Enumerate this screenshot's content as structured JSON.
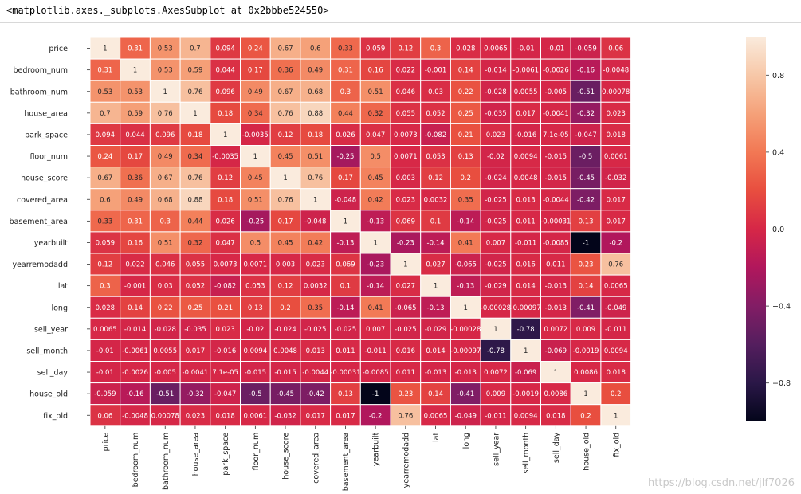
{
  "output": {
    "repr": "<matplotlib.axes._subplots.AxesSubplot at 0x2bbbe524550>"
  },
  "watermark": "https://blog.csdn.net/jlf7026",
  "chart_data": {
    "type": "heatmap",
    "title": "",
    "xlabel": "",
    "ylabel": "",
    "labels": [
      "price",
      "bedroom_num",
      "bathroom_num",
      "house_area",
      "park_space",
      "floor_num",
      "house_score",
      "covered_area",
      "basement_area",
      "yearbuilt",
      "yearremodadd",
      "lat",
      "long",
      "sell_year",
      "sell_month",
      "sell_day",
      "house_old",
      "fix_old"
    ],
    "annotations": [
      [
        "1",
        "0.31",
        "0.53",
        "0.7",
        "0.094",
        "0.24",
        "0.67",
        "0.6",
        "0.33",
        "0.059",
        "0.12",
        "0.3",
        "0.028",
        "0.0065",
        "-0.01",
        "-0.01",
        "-0.059",
        "0.06"
      ],
      [
        "0.31",
        "1",
        "0.53",
        "0.59",
        "0.044",
        "0.17",
        "0.36",
        "0.49",
        "0.31",
        "0.16",
        "0.022",
        "-0.001",
        "0.14",
        "-0.014",
        "-0.0061",
        "-0.0026",
        "-0.16",
        "-0.0048"
      ],
      [
        "0.53",
        "0.53",
        "1",
        "0.76",
        "0.096",
        "0.49",
        "0.67",
        "0.68",
        "0.3",
        "0.51",
        "0.046",
        "0.03",
        "0.22",
        "-0.028",
        "0.0055",
        "-0.005",
        "-0.51",
        "0.00078"
      ],
      [
        "0.7",
        "0.59",
        "0.76",
        "1",
        "0.18",
        "0.34",
        "0.76",
        "0.88",
        "0.44",
        "0.32",
        "0.055",
        "0.052",
        "0.25",
        "-0.035",
        "0.017",
        "-0.0041",
        "-0.32",
        "0.023"
      ],
      [
        "0.094",
        "0.044",
        "0.096",
        "0.18",
        "1",
        "-0.0035",
        "0.12",
        "0.18",
        "0.026",
        "0.047",
        "0.0073",
        "-0.082",
        "0.21",
        "0.023",
        "-0.016",
        "7.1e-05",
        "-0.047",
        "0.018"
      ],
      [
        "0.24",
        "0.17",
        "0.49",
        "0.34",
        "-0.0035",
        "1",
        "0.45",
        "0.51",
        "-0.25",
        "0.5",
        "0.0071",
        "0.053",
        "0.13",
        "-0.02",
        "0.0094",
        "-0.015",
        "-0.5",
        "0.0061"
      ],
      [
        "0.67",
        "0.36",
        "0.67",
        "0.76",
        "0.12",
        "0.45",
        "1",
        "0.76",
        "0.17",
        "0.45",
        "0.003",
        "0.12",
        "0.2",
        "-0.024",
        "0.0048",
        "-0.015",
        "-0.45",
        "-0.032"
      ],
      [
        "0.6",
        "0.49",
        "0.68",
        "0.88",
        "0.18",
        "0.51",
        "0.76",
        "1",
        "-0.048",
        "0.42",
        "0.023",
        "0.0032",
        "0.35",
        "-0.025",
        "0.013",
        "-0.0044",
        "-0.42",
        "0.017"
      ],
      [
        "0.33",
        "0.31",
        "0.3",
        "0.44",
        "0.026",
        "-0.25",
        "0.17",
        "-0.048",
        "1",
        "-0.13",
        "0.069",
        "0.1",
        "-0.14",
        "-0.025",
        "0.011",
        "-0.00031",
        "0.13",
        "0.017"
      ],
      [
        "0.059",
        "0.16",
        "0.51",
        "0.32",
        "0.047",
        "0.5",
        "0.45",
        "0.42",
        "-0.13",
        "1",
        "-0.23",
        "-0.14",
        "0.41",
        "0.007",
        "-0.011",
        "-0.0085",
        "-1",
        "-0.2"
      ],
      [
        "0.12",
        "0.022",
        "0.046",
        "0.055",
        "0.0073",
        "0.0071",
        "0.003",
        "0.023",
        "0.069",
        "-0.23",
        "1",
        "0.027",
        "-0.065",
        "-0.025",
        "0.016",
        "0.011",
        "0.23",
        "0.76"
      ],
      [
        "0.3",
        "-0.001",
        "0.03",
        "0.052",
        "-0.082",
        "0.053",
        "0.12",
        "0.0032",
        "0.1",
        "-0.14",
        "0.027",
        "1",
        "-0.13",
        "-0.029",
        "0.014",
        "-0.013",
        "0.14",
        "0.0065"
      ],
      [
        "0.028",
        "0.14",
        "0.22",
        "0.25",
        "0.21",
        "0.13",
        "0.2",
        "0.35",
        "-0.14",
        "0.41",
        "-0.065",
        "-0.13",
        "1",
        "-0.00028",
        "-0.00097",
        "-0.013",
        "-0.41",
        "-0.049"
      ],
      [
        "0.0065",
        "-0.014",
        "-0.028",
        "-0.035",
        "0.023",
        "-0.02",
        "-0.024",
        "-0.025",
        "-0.025",
        "0.007",
        "-0.025",
        "-0.029",
        "-0.00028",
        "1",
        "-0.78",
        "0.0072",
        "0.009",
        "-0.011"
      ],
      [
        "-0.01",
        "-0.0061",
        "0.0055",
        "0.017",
        "-0.016",
        "0.0094",
        "0.0048",
        "0.013",
        "0.011",
        "-0.011",
        "0.016",
        "0.014",
        "-0.00097",
        "-0.78",
        "1",
        "-0.069",
        "-0.0019",
        "0.0094"
      ],
      [
        "-0.01",
        "-0.0026",
        "-0.005",
        "-0.0041",
        "7.1e-05",
        "-0.015",
        "-0.015",
        "-0.0044",
        "-0.00031",
        "-0.0085",
        "0.011",
        "-0.013",
        "-0.013",
        "0.0072",
        "-0.069",
        "1",
        "0.0086",
        "0.018"
      ],
      [
        "-0.059",
        "-0.16",
        "-0.51",
        "-0.32",
        "-0.047",
        "-0.5",
        "-0.45",
        "-0.42",
        "0.13",
        "-1",
        "0.23",
        "0.14",
        "-0.41",
        "0.009",
        "-0.0019",
        "0.0086",
        "1",
        "0.2"
      ],
      [
        "0.06",
        "-0.0048",
        "0.00078",
        "0.023",
        "0.018",
        "0.0061",
        "-0.032",
        "0.017",
        "0.017",
        "-0.2",
        "0.76",
        "0.0065",
        "-0.049",
        "-0.011",
        "0.0094",
        "0.018",
        "0.2",
        "1"
      ]
    ],
    "colorbar": {
      "range": [
        -1,
        1
      ],
      "ticks": [
        "0.8",
        "0.4",
        "0.0",
        "−0.4",
        "−0.8"
      ],
      "tick_values": [
        0.8,
        0.4,
        0.0,
        -0.4,
        -0.8
      ]
    },
    "colormap": "rocket",
    "grid": "white cell borders",
    "legend": "colorbar right"
  }
}
